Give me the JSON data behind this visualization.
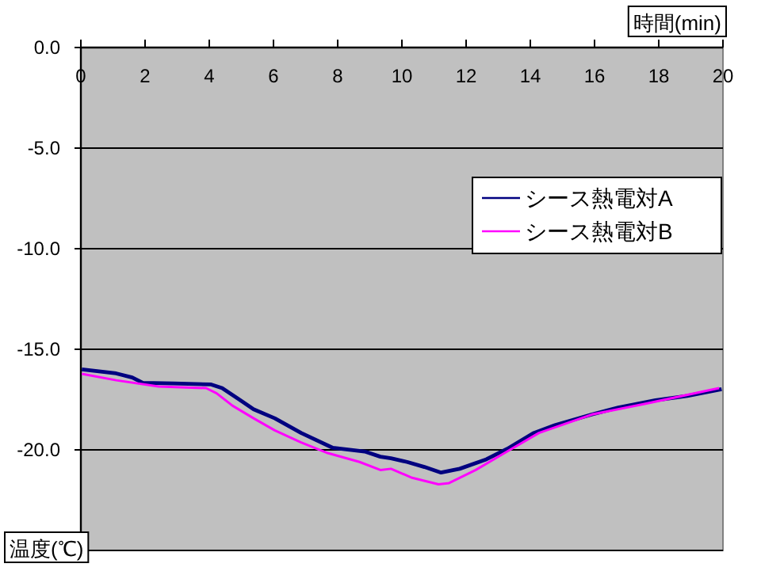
{
  "chart_data": {
    "type": "line",
    "xlabel": "時間(min)",
    "ylabel": "温度(℃)",
    "xlim": [
      0,
      20
    ],
    "xticks": [
      0,
      2,
      4,
      6,
      8,
      10,
      12,
      14,
      16,
      18,
      20
    ],
    "ylim": [
      -25,
      0
    ],
    "yticks": [
      {
        "value": 0,
        "label": "0.0"
      },
      {
        "value": -5,
        "label": "-5.0"
      },
      {
        "value": -10,
        "label": "-10.0"
      },
      {
        "value": -15,
        "label": "-15.0"
      },
      {
        "value": -20,
        "label": "-20.0"
      },
      {
        "value": -25,
        "label": null
      }
    ],
    "grid": "y",
    "legend": "right",
    "marker": "none",
    "line_style": "solid",
    "series": [
      {
        "name": "シース熱電対A",
        "color": "#000080",
        "x": [
          0.03,
          1.1,
          1.6,
          1.93,
          2.9,
          4.06,
          4.4,
          4.9,
          5.38,
          6.04,
          6.86,
          7.85,
          8.84,
          9.33,
          9.66,
          10.16,
          10.7,
          11.22,
          11.8,
          12.63,
          13.28,
          14.11,
          14.77,
          15.92,
          16.74,
          17.9,
          18.89,
          19.96
        ],
        "values": [
          -16.0,
          -16.2,
          -16.4,
          -16.67,
          -16.7,
          -16.75,
          -16.93,
          -17.46,
          -17.98,
          -18.43,
          -19.16,
          -19.9,
          -20.08,
          -20.34,
          -20.42,
          -20.6,
          -20.85,
          -21.13,
          -20.94,
          -20.47,
          -19.95,
          -19.16,
          -18.77,
          -18.24,
          -17.9,
          -17.53,
          -17.32,
          -16.98
        ]
      },
      {
        "name": "シース熱電対B",
        "color": "#ff00ff",
        "x": [
          0.03,
          1.1,
          2.42,
          3.9,
          4.23,
          4.72,
          5.38,
          6.04,
          6.86,
          7.69,
          8.68,
          9.33,
          9.66,
          10.32,
          11.14,
          11.47,
          12.3,
          13.28,
          14.27,
          15.92,
          17.56,
          19.88
        ],
        "values": [
          -16.22,
          -16.54,
          -16.85,
          -16.93,
          -17.19,
          -17.8,
          -18.43,
          -19.03,
          -19.63,
          -20.16,
          -20.6,
          -21.0,
          -20.94,
          -21.39,
          -21.71,
          -21.65,
          -21.0,
          -20.08,
          -19.16,
          -18.24,
          -17.72,
          -16.93
        ]
      }
    ]
  }
}
